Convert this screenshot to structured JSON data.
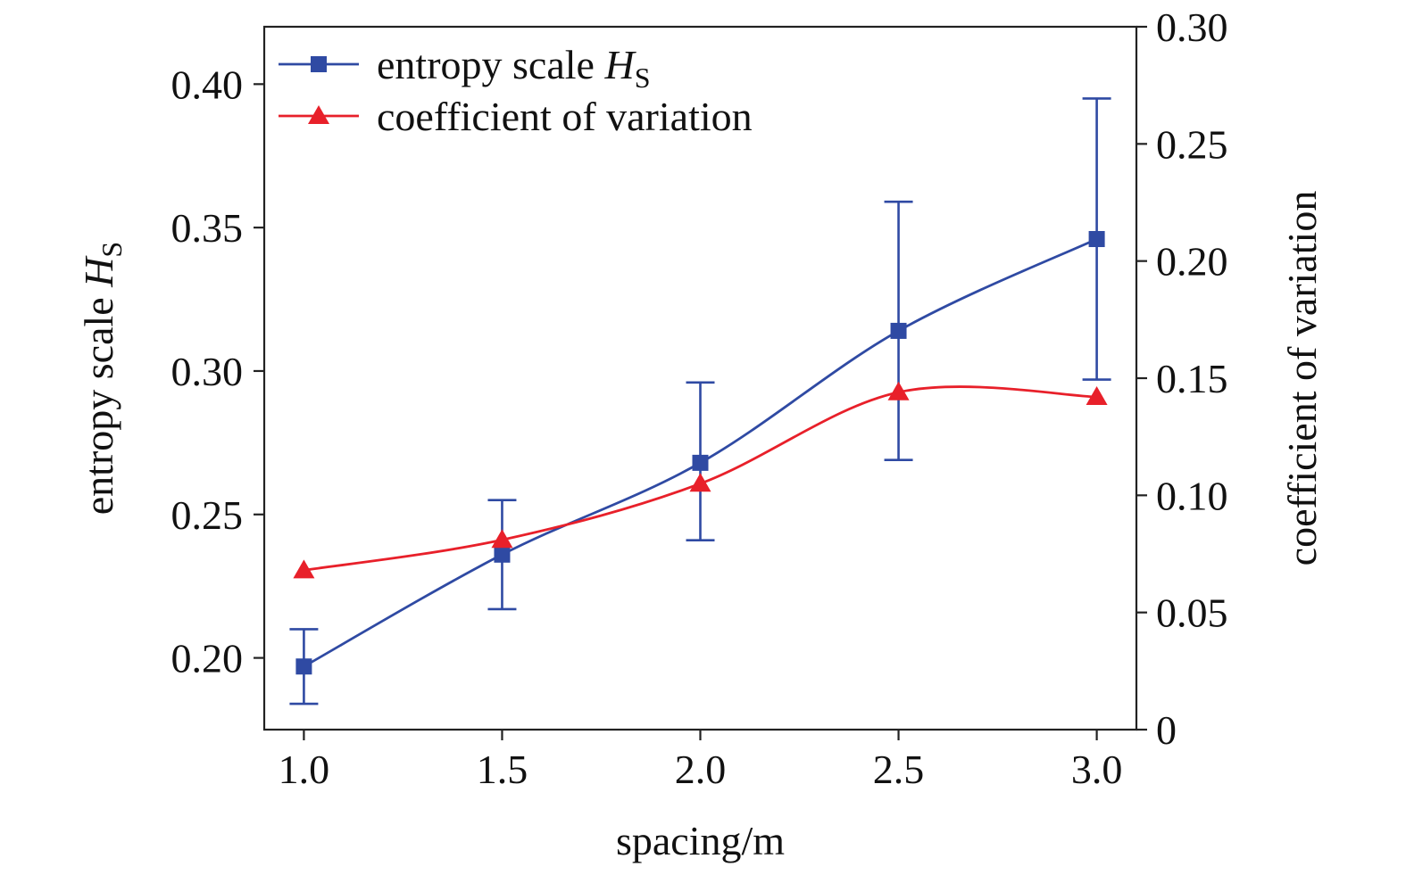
{
  "chart_data": {
    "type": "line",
    "x": [
      1.0,
      1.5,
      2.0,
      2.5,
      3.0
    ],
    "xlabel": "spacing/m",
    "ylabel": {
      "main": "entropy scale ",
      "var": "H",
      "sub": "S"
    },
    "y2label": "coefficient of variation",
    "xlim": [
      0.9,
      3.1
    ],
    "ylim": [
      0.175,
      0.42
    ],
    "y2lim": [
      0,
      0.3
    ],
    "x_ticks": [
      "1.0",
      "1.5",
      "2.0",
      "2.5",
      "3.0"
    ],
    "y_ticks": [
      "0.20",
      "0.25",
      "0.30",
      "0.35",
      "0.40"
    ],
    "y2_ticks": [
      "0",
      "0.05",
      "0.10",
      "0.15",
      "0.20",
      "0.25",
      "0.30"
    ],
    "grid": false,
    "legend_position": "top-left",
    "series": [
      {
        "name": {
          "main": "entropy scale ",
          "var": "H",
          "sub": "S"
        },
        "axis": "left",
        "color": "#2f4aa3",
        "marker": "square",
        "values": [
          0.197,
          0.236,
          0.268,
          0.314,
          0.346
        ],
        "err_low": [
          0.184,
          0.217,
          0.241,
          0.269,
          0.297
        ],
        "err_high": [
          0.21,
          0.255,
          0.296,
          0.359,
          0.395
        ]
      },
      {
        "name": {
          "main": "coefficient of variation"
        },
        "axis": "right",
        "color": "#e8202a",
        "marker": "triangle",
        "values": [
          0.068,
          0.081,
          0.105,
          0.144,
          0.142
        ]
      }
    ]
  }
}
